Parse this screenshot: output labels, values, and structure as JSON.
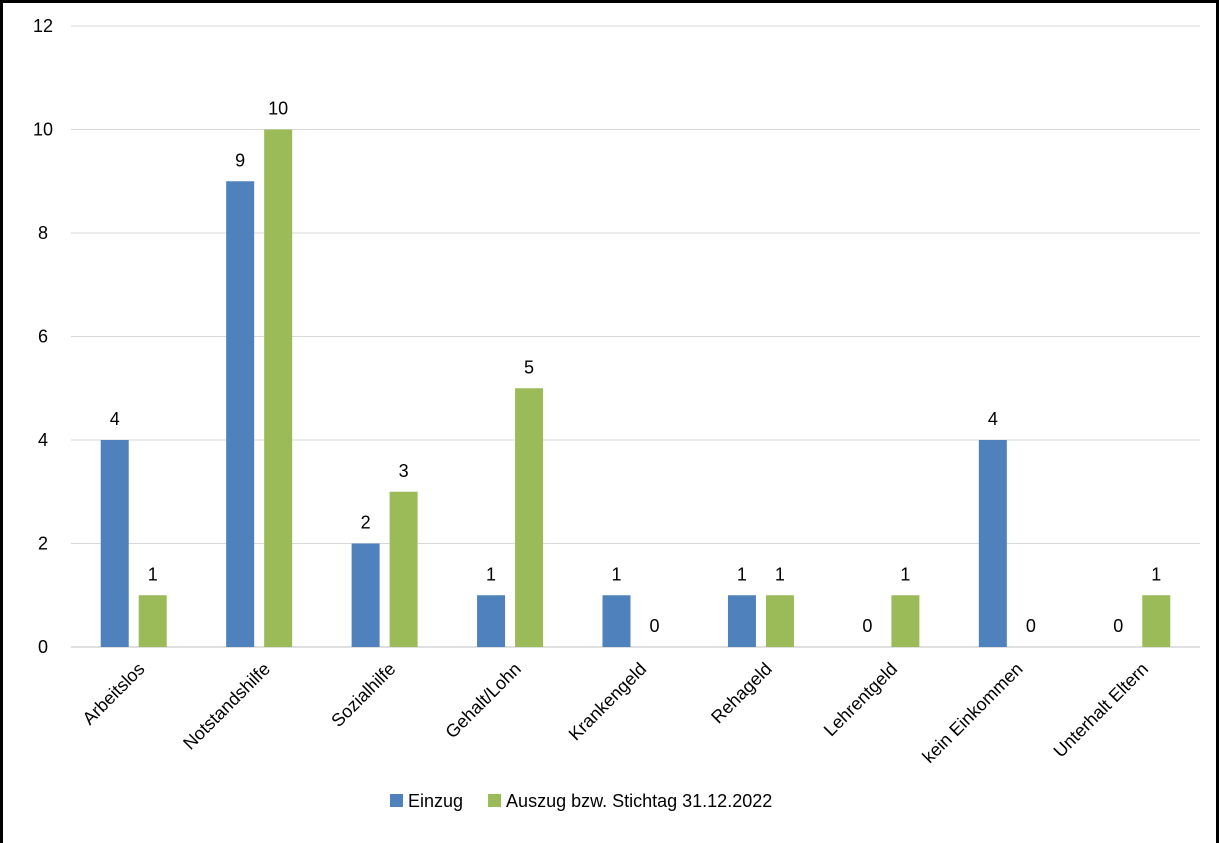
{
  "chart_data": {
    "type": "bar",
    "categories": [
      "Arbeitslos",
      "Notstandshilfe",
      "Sozialhilfe",
      "Gehalt/Lohn",
      "Krankengeld",
      "Rehageld",
      "Lehrentgeld",
      "kein Einkommen",
      "Unterhalt Eltern"
    ],
    "series": [
      {
        "name": "Einzug",
        "color": "#4f81bd",
        "values": [
          4,
          9,
          2,
          1,
          1,
          1,
          0,
          4,
          0
        ]
      },
      {
        "name": "Auszug bzw. Stichtag 31.12.2022",
        "color": "#9bbb59",
        "values": [
          1,
          10,
          3,
          5,
          0,
          1,
          1,
          0,
          1
        ]
      }
    ],
    "ylim": [
      0,
      12
    ],
    "yticks": [
      0,
      2,
      4,
      6,
      8,
      10,
      12
    ],
    "grid": true,
    "legend_position": "bottom",
    "title": "",
    "xlabel": "",
    "ylabel": ""
  }
}
